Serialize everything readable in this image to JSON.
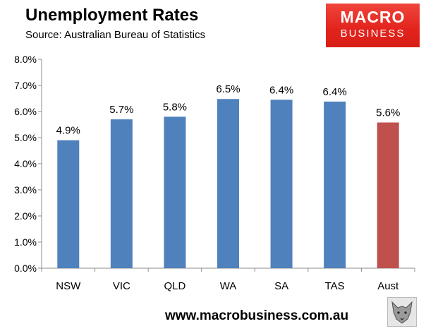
{
  "title": "Unemployment Rates",
  "subtitle": "Source: Australian Bureau of Statistics",
  "logo": {
    "line1": "MACRO",
    "line2": "BUSINESS"
  },
  "footer": "www.macrobusiness.com.au",
  "chart_data": {
    "type": "bar",
    "categories": [
      "NSW",
      "VIC",
      "QLD",
      "WA",
      "SA",
      "TAS",
      "Aust"
    ],
    "values": [
      4.9,
      5.7,
      5.8,
      6.5,
      6.4,
      6.4,
      5.6
    ],
    "data_labels": [
      "4.9%",
      "5.7%",
      "5.8%",
      "6.5%",
      "6.4%",
      "6.4%",
      "5.6%"
    ],
    "bar_values": [
      4.9,
      5.7,
      5.8,
      6.48,
      6.45,
      6.38,
      5.58
    ],
    "colors": [
      "#4f81bd",
      "#4f81bd",
      "#4f81bd",
      "#4f81bd",
      "#4f81bd",
      "#4f81bd",
      "#c0504d"
    ],
    "ylim": [
      0,
      8
    ],
    "yticks": [
      0,
      1,
      2,
      3,
      4,
      5,
      6,
      7,
      8
    ],
    "ytick_labels": [
      "0.0%",
      "1.0%",
      "2.0%",
      "3.0%",
      "4.0%",
      "5.0%",
      "6.0%",
      "7.0%",
      "8.0%"
    ],
    "grid": false,
    "legend": "none",
    "xlabel": "",
    "ylabel": ""
  }
}
